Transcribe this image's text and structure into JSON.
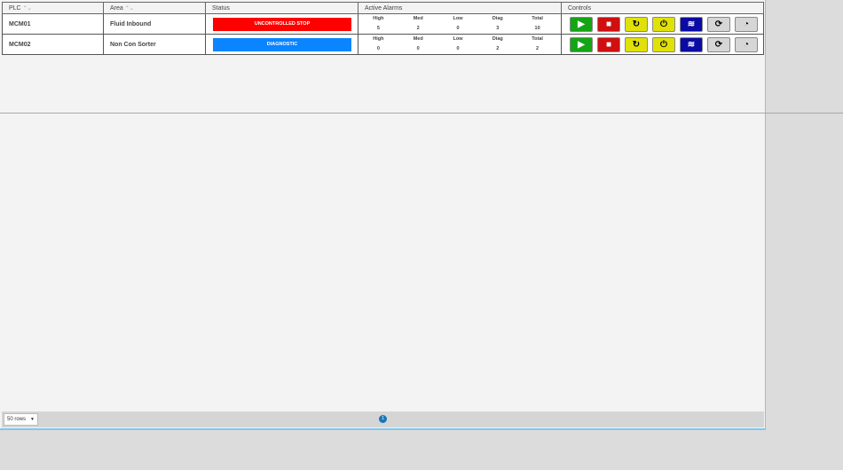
{
  "columns": {
    "plc": "PLC",
    "area": "Area",
    "status": "Status",
    "alarms": "Active Alarms",
    "controls": "Controls"
  },
  "sort_icon": "⌃⌄",
  "alarm_labels": [
    "High",
    "Med",
    "Low",
    "Diag",
    "Total"
  ],
  "rows": [
    {
      "plc": "MCM01",
      "area": "Fluid Inbound",
      "status": "UNCONTROLLED STOP",
      "status_color": "#ff0000",
      "alarms": [
        "5",
        "2",
        "0",
        "3",
        "10"
      ]
    },
    {
      "plc": "MCM02",
      "area": "Non Con Sorter",
      "status": "DIAGNOSTIC",
      "status_color": "#0a84ff",
      "alarms": [
        "0",
        "0",
        "0",
        "2",
        "2"
      ]
    }
  ],
  "control_buttons": [
    {
      "name": "start",
      "icon": "play-circle-icon",
      "glyph": "▶",
      "bg": "#14a514",
      "fg": "#fff"
    },
    {
      "name": "stop",
      "icon": "stop-circle-icon",
      "glyph": "■",
      "bg": "#d01010",
      "fg": "#fff"
    },
    {
      "name": "reset",
      "icon": "refresh-icon",
      "glyph": "↻",
      "bg": "#e1e10a",
      "fg": "#000"
    },
    {
      "name": "power",
      "icon": "plug-icon",
      "glyph": "⏻",
      "bg": "#e1e10a",
      "fg": "#000"
    },
    {
      "name": "flow",
      "icon": "waves-icon",
      "glyph": "≋",
      "bg": "#0a0aa5",
      "fg": "#fff"
    },
    {
      "name": "sync",
      "icon": "sync-icon",
      "glyph": "⟳",
      "bg": "#d6d6d6",
      "fg": "#000"
    },
    {
      "name": "speed",
      "icon": "gauge-icon",
      "glyph": "◔",
      "bg": "#d6d6d6",
      "fg": "#000"
    }
  ],
  "footer": {
    "rows_select": "50 rows",
    "page": "1"
  }
}
